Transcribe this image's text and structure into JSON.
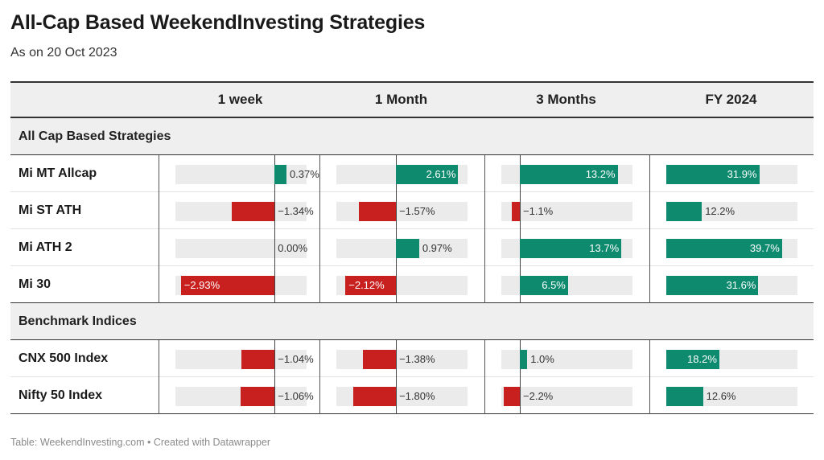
{
  "title": "All-Cap Based WeekendInvesting Strategies",
  "subtitle": "As on 20 Oct 2023",
  "footer": "Table: WeekendInvesting.com • Created with Datawrapper",
  "colors": {
    "positive": "#0e8a6e",
    "negative": "#c8201e",
    "track": "#ebebeb"
  },
  "chart_data": {
    "type": "table",
    "columns": [
      {
        "label": "1 week",
        "min": -3.1,
        "max": 1.0
      },
      {
        "label": "1 Month",
        "min": -2.5,
        "max": 3.0
      },
      {
        "label": "3 Months",
        "min": -2.5,
        "max": 15.2
      },
      {
        "label": "FY 2024",
        "min": 0,
        "max": 45
      }
    ],
    "groups": [
      {
        "name": "All Cap Based Strategies",
        "rows": [
          {
            "name": "Mi MT Allcap",
            "values": [
              0.37,
              2.61,
              13.2,
              31.9
            ],
            "labels": [
              "0.37%",
              "2.61%",
              "13.2%",
              "31.9%"
            ]
          },
          {
            "name": "Mi ST ATH",
            "values": [
              -1.34,
              -1.57,
              -1.1,
              12.2
            ],
            "labels": [
              "−1.34%",
              "−1.57%",
              "−1.1%",
              "12.2%"
            ]
          },
          {
            "name": "Mi ATH 2",
            "values": [
              0.0,
              0.97,
              13.7,
              39.7
            ],
            "labels": [
              "0.00%",
              "0.97%",
              "13.7%",
              "39.7%"
            ]
          },
          {
            "name": "Mi 30",
            "values": [
              -2.93,
              -2.12,
              6.5,
              31.6
            ],
            "labels": [
              "−2.93%",
              "−2.12%",
              "6.5%",
              "31.6%"
            ]
          }
        ]
      },
      {
        "name": "Benchmark Indices",
        "rows": [
          {
            "name": "CNX 500 Index",
            "values": [
              -1.04,
              -1.38,
              1.0,
              18.2
            ],
            "labels": [
              "−1.04%",
              "−1.38%",
              "1.0%",
              "18.2%"
            ]
          },
          {
            "name": "Nifty 50 Index",
            "values": [
              -1.06,
              -1.8,
              -2.2,
              12.6
            ],
            "labels": [
              "−1.06%",
              "−1.80%",
              "−2.2%",
              "12.6%"
            ]
          }
        ]
      }
    ]
  }
}
